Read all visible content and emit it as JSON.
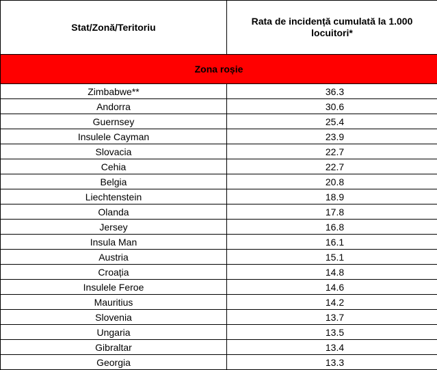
{
  "table": {
    "headers": {
      "territory": "Stat/Zonă/Teritoriu",
      "rate": "Rata de incidență cumulată la 1.000 locuitori*"
    },
    "zone_label": "Zona roșie",
    "zone_color": "#ff0000",
    "rows": [
      {
        "name": "Zimbabwe**",
        "rate": "36.3"
      },
      {
        "name": "Andorra",
        "rate": "30.6"
      },
      {
        "name": "Guernsey",
        "rate": "25.4"
      },
      {
        "name": "Insulele Cayman",
        "rate": "23.9"
      },
      {
        "name": "Slovacia",
        "rate": "22.7"
      },
      {
        "name": "Cehia",
        "rate": "22.7"
      },
      {
        "name": "Belgia",
        "rate": "20.8"
      },
      {
        "name": "Liechtenstein",
        "rate": "18.9"
      },
      {
        "name": "Olanda",
        "rate": "17.8"
      },
      {
        "name": "Jersey",
        "rate": "16.8"
      },
      {
        "name": "Insula Man",
        "rate": "16.1"
      },
      {
        "name": "Austria",
        "rate": "15.1"
      },
      {
        "name": "Croația",
        "rate": "14.8"
      },
      {
        "name": "Insulele Feroe",
        "rate": "14.6"
      },
      {
        "name": "Mauritius",
        "rate": "14.2"
      },
      {
        "name": "Slovenia",
        "rate": "13.7"
      },
      {
        "name": "Ungaria",
        "rate": "13.5"
      },
      {
        "name": "Gibraltar",
        "rate": "13.4"
      },
      {
        "name": "Georgia",
        "rate": "13.3"
      }
    ]
  }
}
